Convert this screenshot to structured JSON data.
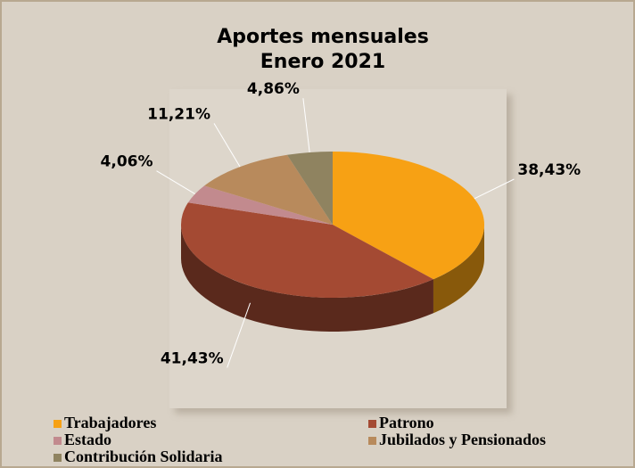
{
  "chart_data": {
    "type": "pie",
    "title": "Aportes mensuales",
    "subtitle": "Enero 2021",
    "categories": [
      "Trabajadores",
      "Patrono",
      "Estado",
      "Jubilados y Pensionados",
      "Contribución Solidaria"
    ],
    "values": [
      38.43,
      41.43,
      4.06,
      11.21,
      4.86
    ],
    "value_labels": [
      "38,43%",
      "41,43%",
      "4,06%",
      "11,21%",
      "4,86%"
    ],
    "colors": [
      "#f7a114",
      "#a44a33",
      "#c28a8e",
      "#b88a5c",
      "#8f8360"
    ],
    "legend": "bottom"
  }
}
